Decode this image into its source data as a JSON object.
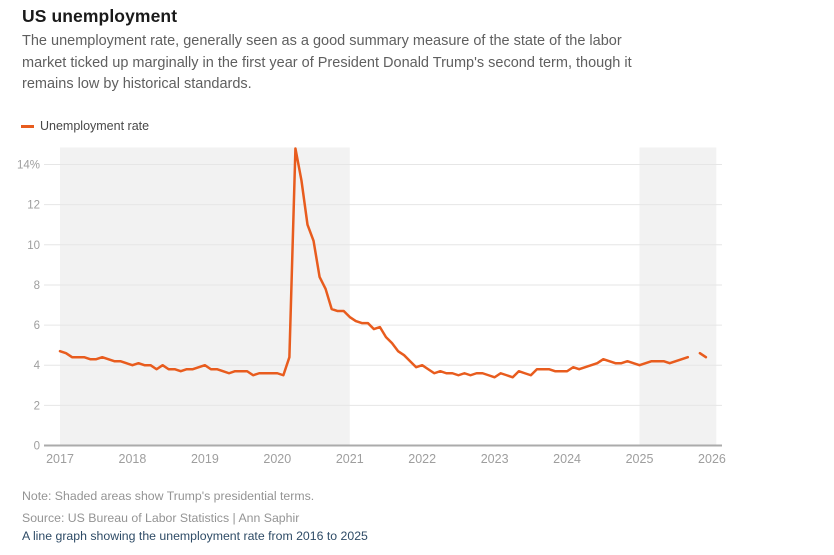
{
  "header": {
    "title": "US unemployment",
    "subtitle_lines": [
      "The unemployment rate, generally seen as a good summary measure of the state of the labor",
      "market ticked up marginally in the first year of President Donald Trump's second term, though it",
      "remains low by historical standards."
    ],
    "legend": {
      "label": "Unemployment rate"
    }
  },
  "footer": {
    "note": "Note: Shaded areas show Trump's presidential terms.",
    "source": "Source: US Bureau of Labor Statistics | Ann Saphir",
    "alt_text": "A line graph showing the unemployment rate from 2016 to 2025"
  },
  "colors": {
    "line": "#e85c1e",
    "shading": "#f2f2f2",
    "gridline": "#e6e6e6",
    "axis": "#ababab",
    "axis_label": "#9e9e9e",
    "title_text": "#1a1a1a",
    "subtitle_text": "#5f5f5f",
    "note_text": "#949494",
    "alt_text": "#2e4b66"
  },
  "chart_data": {
    "type": "line",
    "title": "US unemployment",
    "unit": "%",
    "legend_position": "top-left",
    "grid": true,
    "ylim": [
      0,
      14.85
    ],
    "xlim": [
      2016.8,
      2026.06
    ],
    "x_ticks": [
      2017,
      2018,
      2019,
      2020,
      2021,
      2022,
      2023,
      2024,
      2025,
      2026
    ],
    "y_ticks": [
      {
        "value": 0,
        "label": "0"
      },
      {
        "value": 2,
        "label": "2"
      },
      {
        "value": 4,
        "label": "4"
      },
      {
        "value": 6,
        "label": "6"
      },
      {
        "value": 8,
        "label": "8"
      },
      {
        "value": 10,
        "label": "10"
      },
      {
        "value": 12,
        "label": "12"
      },
      {
        "value": 14,
        "label": "14%"
      }
    ],
    "shaded_regions": [
      {
        "label": "Trump first presidential term",
        "from": 2017.0,
        "to": 2021.0
      },
      {
        "label": "Trump second presidential term",
        "from": 2025.0,
        "to": 2026.06
      }
    ],
    "series": [
      {
        "name": "Unemployment rate",
        "start_year": 2017,
        "frequency": "monthly",
        "values": [
          4.7,
          4.6,
          4.4,
          4.4,
          4.4,
          4.3,
          4.3,
          4.4,
          4.3,
          4.2,
          4.2,
          4.1,
          4.0,
          4.1,
          4.0,
          4.0,
          3.8,
          4.0,
          3.8,
          3.8,
          3.7,
          3.8,
          3.8,
          3.9,
          4.0,
          3.8,
          3.8,
          3.7,
          3.6,
          3.7,
          3.7,
          3.7,
          3.5,
          3.6,
          3.6,
          3.6,
          3.6,
          3.5,
          4.4,
          14.8,
          13.2,
          11.0,
          10.2,
          8.4,
          7.8,
          6.8,
          6.7,
          6.7,
          6.4,
          6.2,
          6.1,
          6.1,
          5.8,
          5.9,
          5.4,
          5.1,
          4.7,
          4.5,
          4.2,
          3.9,
          4.0,
          3.8,
          3.6,
          3.7,
          3.6,
          3.6,
          3.5,
          3.6,
          3.5,
          3.6,
          3.6,
          3.5,
          3.4,
          3.6,
          3.5,
          3.4,
          3.7,
          3.6,
          3.5,
          3.8,
          3.8,
          3.8,
          3.7,
          3.7,
          3.7,
          3.9,
          3.8,
          3.9,
          4.0,
          4.1,
          4.3,
          4.2,
          4.1,
          4.1,
          4.2,
          4.1,
          4.0,
          4.1,
          4.2,
          4.2,
          4.2,
          4.1,
          4.2,
          4.3,
          4.4,
          null,
          4.6,
          4.4
        ]
      }
    ]
  }
}
